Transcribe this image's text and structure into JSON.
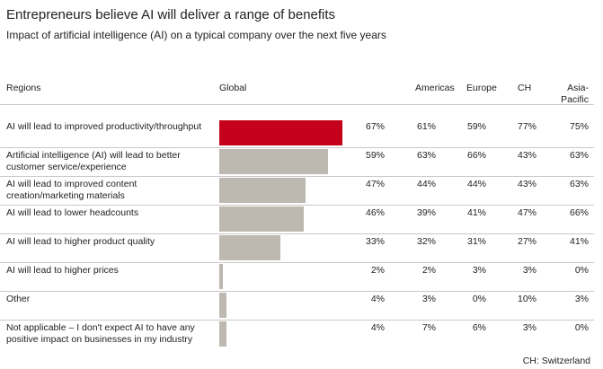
{
  "chart_data": {
    "type": "bar",
    "title": "Entrepreneurs believe AI will deliver a range of benefits",
    "subtitle": "Impact of artificial intelligence (AI) on a typical company over the next five years",
    "row_header": "Regions",
    "categories": [
      "AI will lead to improved productivity/throughput",
      "Artificial intelligence (AI) will lead to better customer service/experience",
      "AI will lead to improved content creation/marketing materials",
      "AI will lead to lower headcounts",
      "AI will lead to higher product quality",
      "AI will lead to higher prices",
      "Other",
      "Not applicable – I don't expect AI to have any positive impact on businesses in my industry"
    ],
    "series": [
      {
        "name": "Global",
        "colors": [
          "#c4001a",
          "#bdb9b1",
          "#bdb9b1",
          "#bdb9b1",
          "#bdb9b1",
          "#bdb9b1",
          "#bdb9b1",
          "#bdb9b1"
        ],
        "values": [
          67,
          59,
          47,
          46,
          33,
          2,
          4,
          4
        ],
        "value_labels": [
          "67%",
          "59%",
          "47%",
          "46%",
          "33%",
          "2%",
          "4%",
          "4%"
        ]
      },
      {
        "name": "Americas",
        "values": [
          61,
          63,
          44,
          39,
          32,
          2,
          3,
          7
        ],
        "value_labels": [
          "61%",
          "63%",
          "44%",
          "39%",
          "32%",
          "2%",
          "3%",
          "7%"
        ]
      },
      {
        "name": "Europe",
        "values": [
          59,
          66,
          44,
          41,
          31,
          3,
          0,
          6
        ],
        "value_labels": [
          "59%",
          "66%",
          "44%",
          "41%",
          "31%",
          "3%",
          "0%",
          "6%"
        ]
      },
      {
        "name": "CH",
        "values": [
          77,
          43,
          43,
          47,
          27,
          3,
          10,
          3
        ],
        "value_labels": [
          "77%",
          "43%",
          "43%",
          "47%",
          "27%",
          "3%",
          "10%",
          "3%"
        ]
      },
      {
        "name": "Asia-Pacific",
        "values": [
          75,
          63,
          63,
          66,
          41,
          0,
          3,
          0
        ],
        "value_labels": [
          "75%",
          "63%",
          "63%",
          "66%",
          "41%",
          "0%",
          "3%",
          "0%"
        ]
      }
    ],
    "footnote": "CH: Switzerland"
  }
}
